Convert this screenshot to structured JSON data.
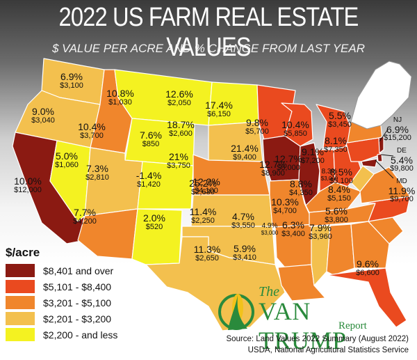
{
  "title": "2022 US FARM REAL ESTATE VALUES",
  "subtitle": "$ VALUE PER ACRE AND % CHANGE FROM LAST YEAR",
  "legend": {
    "title": "$/acre",
    "items": [
      {
        "label": "$8,401 and over",
        "color": "#8b1a12"
      },
      {
        "label": "$5,101 - $8,400",
        "color": "#ea4a1f"
      },
      {
        "label": "$3,201 - $5,100",
        "color": "#f0862c"
      },
      {
        "label": "$2,201 - $3,200",
        "color": "#f3c04e"
      },
      {
        "label": "$2,200 - and less",
        "color": "#f4f221"
      }
    ]
  },
  "states": [
    {
      "id": "WA",
      "pct": "6.9%",
      "val": "$3,100",
      "color": "#f3c04e"
    },
    {
      "id": "OR",
      "pct": "9.0%",
      "val": "$3,040",
      "color": "#f3c04e"
    },
    {
      "id": "CA",
      "pct": "10.0%",
      "val": "$12,000",
      "color": "#8b1a12"
    },
    {
      "id": "NV",
      "pct": "5.0%",
      "val": "$1,060",
      "color": "#f4f221"
    },
    {
      "id": "ID",
      "pct": "10.4%",
      "val": "$3,700",
      "color": "#f0862c"
    },
    {
      "id": "MT",
      "pct": "10.8%",
      "val": "$1,030",
      "color": "#f4f221"
    },
    {
      "id": "WY",
      "pct": "7.6%",
      "val": "$850",
      "color": "#f4f221"
    },
    {
      "id": "UT",
      "pct": "7.3%",
      "val": "$2,810",
      "color": "#f3c04e"
    },
    {
      "id": "CO",
      "pct": "-1.4%",
      "val": "$1,420",
      "color": "#f4f221"
    },
    {
      "id": "AZ",
      "pct": "7.7%",
      "val": "$4,200",
      "color": "#f0862c"
    },
    {
      "id": "NM",
      "pct": "2.0%",
      "val": "$520",
      "color": "#f4f221"
    },
    {
      "id": "ND",
      "pct": "12.6%",
      "val": "$2,050",
      "color": "#f4f221"
    },
    {
      "id": "SD",
      "pct": "18.7%",
      "val": "$2,600",
      "color": "#f3c04e"
    },
    {
      "id": "NE",
      "pct": "21%",
      "val": "$3,750",
      "color": "#f0862c"
    },
    {
      "id": "KS",
      "pct": "25.2%",
      "val": "$2,630",
      "color": "#f3c04e"
    },
    {
      "id": "OK",
      "pct": "11.4%",
      "val": "$2,250",
      "color": "#f3c04e"
    },
    {
      "id": "TX",
      "pct": "11.3%",
      "val": "$2,650",
      "color": "#f3c04e"
    },
    {
      "id": "MN",
      "pct": "17.4%",
      "val": "$6,150",
      "color": "#ea4a1f"
    },
    {
      "id": "IA",
      "pct": "21.4%",
      "val": "$9,400",
      "color": "#8b1a12"
    },
    {
      "id": "MO",
      "pct": "12.2%",
      "val": "$4,100",
      "color": "#f0862c"
    },
    {
      "id": "AR",
      "pct": "4.7%",
      "val": "$3,550",
      "color": "#f0862c"
    },
    {
      "id": "LA",
      "pct": "5.9%",
      "val": "$3,410",
      "color": "#f0862c"
    },
    {
      "id": "WI",
      "pct": "9.8%",
      "val": "$5,700",
      "color": "#ea4a1f"
    },
    {
      "id": "IL",
      "pct": "12.7%",
      "val": "$8,900",
      "color": "#8b1a12"
    },
    {
      "id": "MI",
      "pct": "10.4%",
      "val": "$5,850",
      "color": "#ea4a1f"
    },
    {
      "id": "IN",
      "pct": "12.7%",
      "val": "$8,000",
      "color": "#ea4a1f"
    },
    {
      "id": "OH",
      "pct": "9.1%",
      "val": "$7,200",
      "color": "#ea4a1f"
    },
    {
      "id": "KY",
      "pct": "8.8%",
      "val": "$4,350",
      "color": "#f0862c"
    },
    {
      "id": "TN",
      "pct": "10.3%",
      "val": "$4,700",
      "color": "#f0862c"
    },
    {
      "id": "MS",
      "pct": "4.9%",
      "val": "$3,000",
      "color": "#f3c04e"
    },
    {
      "id": "AL",
      "pct": "6.3%",
      "val": "$3,400",
      "color": "#f0862c"
    },
    {
      "id": "GA",
      "pct": "7.9%",
      "val": "$3,960",
      "color": "#f0862c"
    },
    {
      "id": "FL",
      "pct": "9.6%",
      "val": "$6,600",
      "color": "#ea4a1f"
    },
    {
      "id": "SC",
      "pct": "5.6%",
      "val": "$3,800",
      "color": "#f0862c"
    },
    {
      "id": "NC",
      "pct": "8.4%",
      "val": "$5,150",
      "color": "#ea4a1f"
    },
    {
      "id": "VA",
      "pct": "8.5%",
      "val": "$5,100",
      "color": "#f0862c"
    },
    {
      "id": "WV",
      "pct": "8.3%",
      "val": "$3,000",
      "color": "#f3c04e"
    },
    {
      "id": "PA",
      "pct": "8.1%",
      "val": "$7,350",
      "color": "#ea4a1f"
    },
    {
      "id": "NY",
      "pct": "5.5%",
      "val": "$3,450",
      "color": "#f0862c"
    },
    {
      "id": "NJ",
      "pct": "6.9%",
      "val": "$15,200",
      "color": "#8b1a12"
    },
    {
      "id": "DE",
      "pct": "5.4%",
      "val": "$9,800",
      "color": "#8b1a12"
    },
    {
      "id": "MD",
      "pct": "11.9%",
      "val": "$9,700",
      "color": "#8b1a12"
    }
  ],
  "callout_labels": {
    "NJ": "NJ",
    "DE": "DE",
    "MD": "MD"
  },
  "logo": {
    "the": "The",
    "name": "VAN TRUMP",
    "report": "Report"
  },
  "source": {
    "line1": "Source: Land Values 2022 Summary (August 2022)",
    "line2": "USDA, National Agricultural Statistics Service"
  }
}
